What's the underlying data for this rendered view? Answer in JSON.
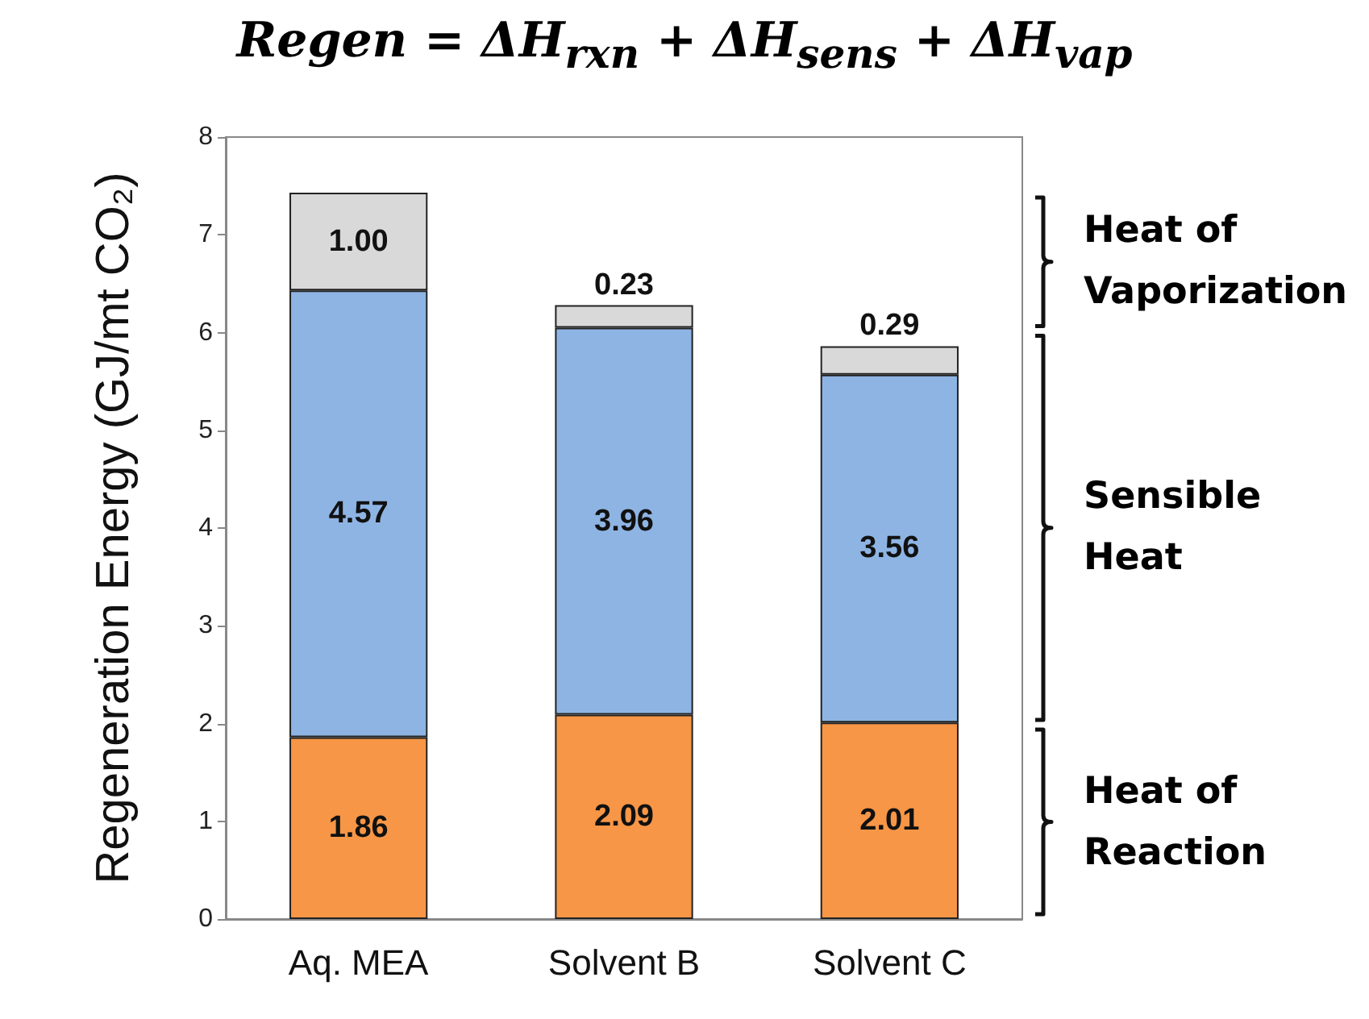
{
  "chart_data": {
    "type": "bar",
    "title": "Regen = ΔH$_{rxn}$ + ΔH$_{sens}$ + ΔH$_{vap}$",
    "ylabel": "Regeneration Energy (GJ/mt CO₂)",
    "categories": [
      "Aq. MEA",
      "Solvent B",
      "Solvent C"
    ],
    "series": [
      {
        "name": "Heat of Reaction",
        "color": "#f79646",
        "values": [
          1.86,
          2.09,
          2.01
        ],
        "value_labels": [
          "1.86",
          "2.09",
          "2.01"
        ]
      },
      {
        "name": "Sensible Heat",
        "color": "#8eb4e3",
        "values": [
          4.57,
          3.96,
          3.56
        ],
        "value_labels": [
          "4.57",
          "3.96",
          "3.56"
        ]
      },
      {
        "name": "Heat of Vaporization",
        "color": "#d9d9d9",
        "values": [
          1.0,
          0.23,
          0.29
        ],
        "value_labels": [
          "1.00",
          "0.23",
          "0.29"
        ]
      }
    ],
    "stacked": true,
    "ylim": [
      0,
      8
    ],
    "yticks": [
      0,
      1,
      2,
      3,
      4,
      5,
      6,
      7,
      8
    ],
    "grid": false,
    "legend": false
  }
}
